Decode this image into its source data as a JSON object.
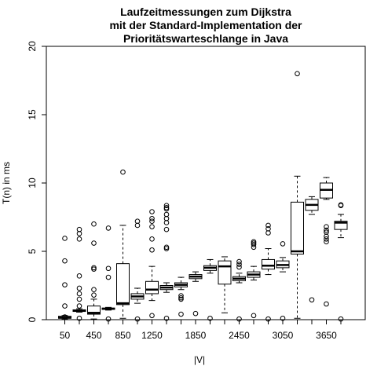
{
  "chart_data": {
    "type": "boxplot",
    "title": [
      "Laufzeitmessungen zum Dijkstra",
      "mit der Standard-Implementation der",
      "Prioritätswarteschlange in Java"
    ],
    "xlabel": "|V|",
    "ylabel": "T(n) in ms",
    "ylim": [
      0,
      20
    ],
    "yticks": [
      0,
      5,
      10,
      15,
      20
    ],
    "x_tick_labels": [
      "50",
      "450",
      "850",
      "1250",
      "1850",
      "2450",
      "3050",
      "3650"
    ],
    "x_tick_positions": [
      1,
      3,
      5,
      7,
      10,
      13,
      16,
      19
    ],
    "colors": {
      "box_fill": "#ffffff",
      "stroke": "#000000"
    },
    "boxes": [
      {
        "pos": 1,
        "min": 0.05,
        "q1": 0.1,
        "median": 0.15,
        "q3": 0.25,
        "max": 0.3,
        "outliers": [
          0.2,
          1.0,
          2.55,
          4.3,
          5.95
        ]
      },
      {
        "pos": 2,
        "min": 0.55,
        "q1": 0.6,
        "median": 0.65,
        "q3": 0.72,
        "max": 0.8,
        "outliers": [
          0.1,
          1.0,
          1.5,
          1.9,
          2.3,
          3.2,
          5.9,
          6.3,
          6.6
        ]
      },
      {
        "pos": 3,
        "min": 0.05,
        "q1": 0.4,
        "median": 0.5,
        "q3": 1.0,
        "max": 1.5,
        "outliers": [
          1.8,
          2.2,
          3.7,
          3.8,
          5.6,
          7.0
        ]
      },
      {
        "pos": 4,
        "min": 0.7,
        "q1": 0.75,
        "median": 0.8,
        "q3": 0.85,
        "max": 0.9,
        "outliers": [
          0.05,
          3.1,
          3.75,
          6.7
        ]
      },
      {
        "pos": 5,
        "min": 0.1,
        "q1": 1.1,
        "median": 1.2,
        "q3": 4.1,
        "max": 6.9,
        "outliers": [
          10.8
        ]
      },
      {
        "pos": 6,
        "min": 1.2,
        "q1": 1.5,
        "median": 1.7,
        "q3": 1.9,
        "max": 2.3,
        "outliers": [
          0.05,
          6.9,
          7.2
        ]
      },
      {
        "pos": 7,
        "min": 1.4,
        "q1": 1.9,
        "median": 2.2,
        "q3": 2.8,
        "max": 3.9,
        "outliers": [
          0.3,
          5.1,
          5.9,
          6.8,
          7.2,
          7.4,
          7.9
        ]
      },
      {
        "pos": 8,
        "min": 2.0,
        "q1": 2.2,
        "median": 2.35,
        "q3": 2.5,
        "max": 2.7,
        "outliers": [
          0.1,
          5.2,
          5.3,
          6.6,
          7.1,
          7.4,
          7.7,
          8.1,
          8.2,
          8.35
        ]
      },
      {
        "pos": 9,
        "min": 2.2,
        "q1": 2.4,
        "median": 2.55,
        "q3": 2.7,
        "max": 3.1,
        "outliers": [
          0.4,
          1.5,
          1.6,
          1.75
        ]
      },
      {
        "pos": 10,
        "min": 2.8,
        "q1": 3.0,
        "median": 3.15,
        "q3": 3.3,
        "max": 3.5,
        "outliers": [
          0.45
        ]
      },
      {
        "pos": 11,
        "min": 3.4,
        "q1": 3.6,
        "median": 3.8,
        "q3": 3.95,
        "max": 4.4,
        "outliers": [
          0.1
        ]
      },
      {
        "pos": 12,
        "min": 0.5,
        "q1": 2.6,
        "median": 3.9,
        "q3": 4.3,
        "max": 4.6,
        "outliers": []
      },
      {
        "pos": 13,
        "min": 2.7,
        "q1": 2.85,
        "median": 3.0,
        "q3": 3.15,
        "max": 3.4,
        "outliers": [
          0.05,
          3.85,
          4.05,
          4.25
        ]
      },
      {
        "pos": 14,
        "min": 2.9,
        "q1": 3.1,
        "median": 3.3,
        "q3": 3.5,
        "max": 3.9,
        "outliers": [
          0.3,
          5.3,
          5.5,
          5.6,
          5.7
        ]
      },
      {
        "pos": 15,
        "min": 3.3,
        "q1": 3.7,
        "median": 3.95,
        "q3": 4.4,
        "max": 5.2,
        "outliers": [
          0.05,
          6.35,
          6.65,
          6.9
        ]
      },
      {
        "pos": 16,
        "min": 3.5,
        "q1": 3.8,
        "median": 4.0,
        "q3": 4.3,
        "max": 4.55,
        "outliers": [
          0.1,
          5.55
        ]
      },
      {
        "pos": 17,
        "min": 0.1,
        "q1": 4.8,
        "median": 5.0,
        "q3": 8.6,
        "max": 10.5,
        "outliers": [
          18.0
        ]
      },
      {
        "pos": 18,
        "min": 7.7,
        "q1": 8.0,
        "median": 8.4,
        "q3": 8.8,
        "max": 9.0,
        "outliers": [
          1.45
        ]
      },
      {
        "pos": 19,
        "min": 8.8,
        "q1": 8.9,
        "median": 9.5,
        "q3": 10.0,
        "max": 10.4,
        "outliers": [
          1.15,
          5.7,
          5.9,
          6.1,
          6.4,
          6.55,
          6.8
        ]
      },
      {
        "pos": 20,
        "min": 6.0,
        "q1": 6.6,
        "median": 7.1,
        "q3": 7.2,
        "max": 7.7,
        "outliers": [
          0.05,
          8.35,
          8.4
        ]
      }
    ]
  }
}
